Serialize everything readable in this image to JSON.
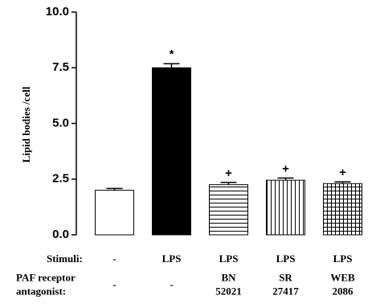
{
  "chart_data": {
    "type": "bar",
    "y_label": "Lipid bodies /cell",
    "ylim": [
      0,
      10
    ],
    "yticks": [
      {
        "value": 0,
        "label": "0.0"
      },
      {
        "value": 2.5,
        "label": "2.5"
      },
      {
        "value": 5,
        "label": "5.0"
      },
      {
        "value": 7.5,
        "label": "7.5"
      },
      {
        "value": 10,
        "label": "10.0"
      }
    ],
    "series": [
      {
        "values": [
          2.0,
          7.5,
          2.25,
          2.45,
          2.3
        ],
        "errors": [
          0.08,
          0.18,
          0.1,
          0.1,
          0.08
        ],
        "patterns": [
          "none",
          "solid",
          "horizontal",
          "vertical",
          "grid"
        ],
        "color": "#000000"
      }
    ],
    "significance": [
      null,
      "*",
      "+",
      "+",
      "+"
    ],
    "rows": [
      {
        "label": "Stimuli:",
        "values": [
          "-",
          "LPS",
          "LPS",
          "LPS",
          "LPS"
        ]
      },
      {
        "label": "PAF receptor\nantagonist:",
        "values": [
          "-",
          "-",
          "BN\n52021",
          "SR\n27417",
          "WEB\n2086"
        ]
      }
    ]
  }
}
